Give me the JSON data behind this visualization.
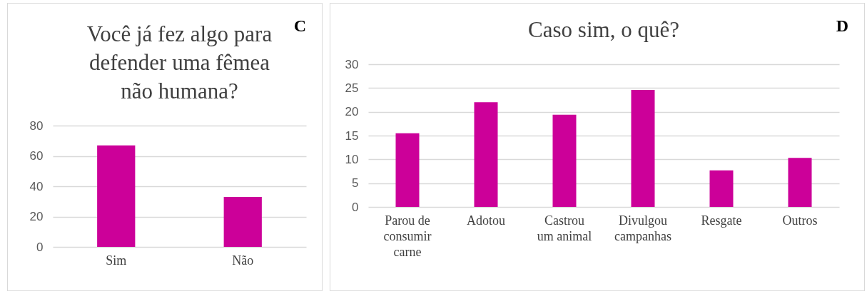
{
  "chart_data": [
    {
      "type": "bar",
      "title": "Você já fez algo para defender uma fêmea não humana?",
      "categories": [
        "Sim",
        "Não"
      ],
      "values": [
        67,
        33
      ],
      "color": "#cc0099",
      "ylim": [
        0,
        80
      ],
      "yticks": [
        0,
        20,
        40,
        60,
        80
      ],
      "grid": "y",
      "annotations": [
        "C"
      ]
    },
    {
      "type": "bar",
      "title": "Caso sim, o quê?",
      "categories": [
        "Parou de consumir carne",
        "Adotou",
        "Castrou um animal",
        "Divulgou campanhas",
        "Resgate",
        "Outros"
      ],
      "values": [
        15.5,
        22.0,
        19.4,
        24.6,
        7.7,
        10.3
      ],
      "color": "#cc0099",
      "ylim": [
        0,
        30
      ],
      "yticks": [
        0,
        5,
        10,
        15,
        20,
        25,
        30
      ],
      "grid": "y",
      "annotations": [
        "D"
      ]
    }
  ]
}
